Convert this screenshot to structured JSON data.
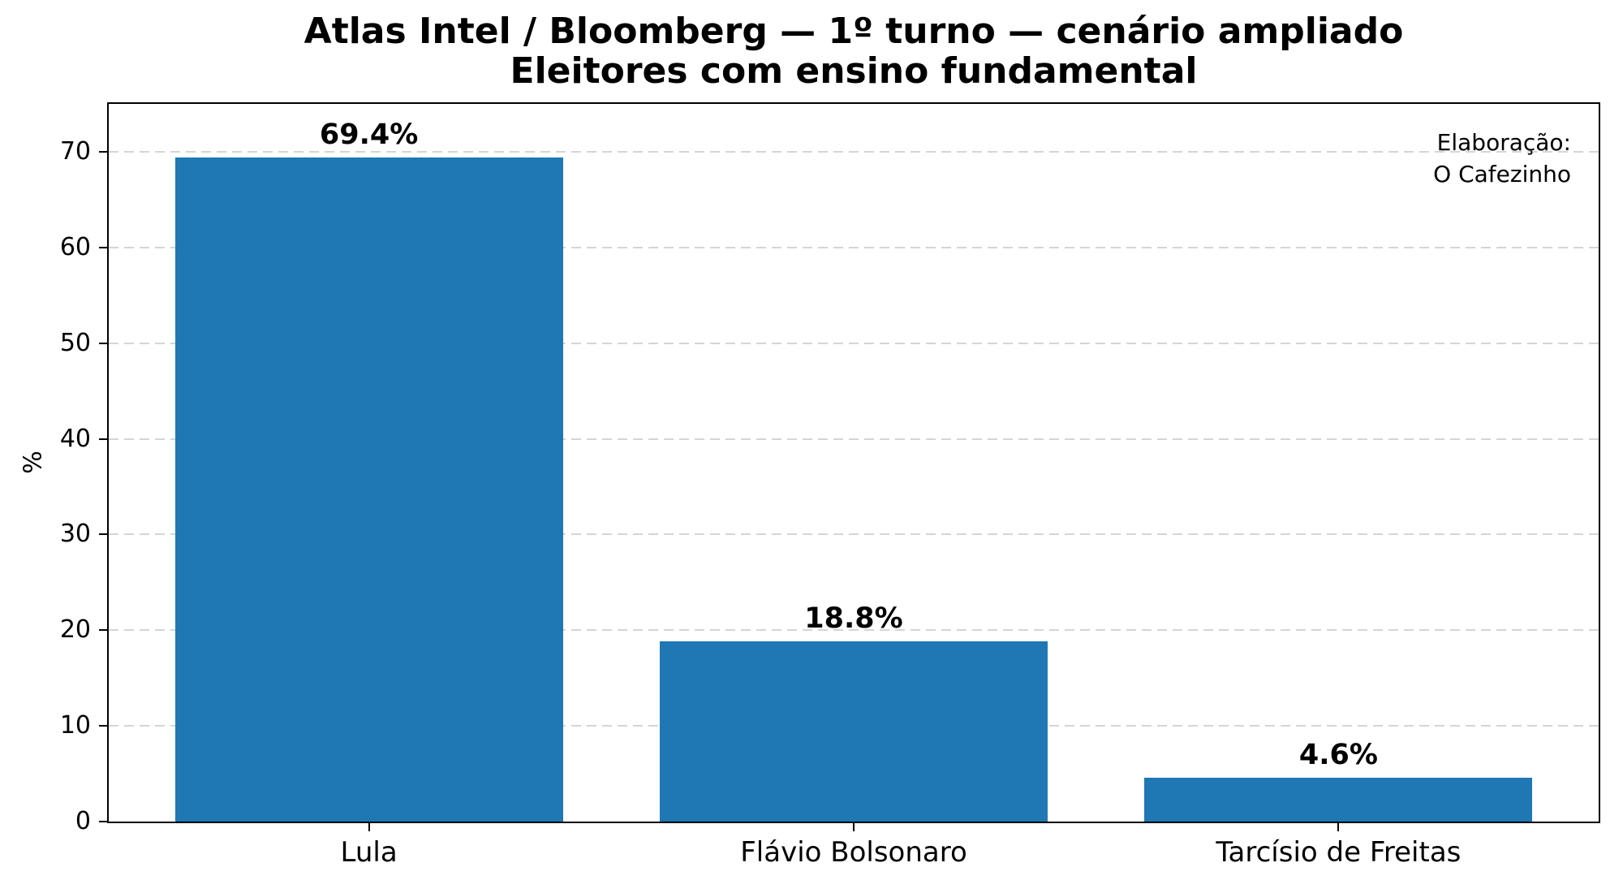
{
  "figure": {
    "title_line1": "Atlas Intel / Bloomberg — 1º turno — cenário ampliado",
    "title_line2": "Eleitores com ensino fundamental",
    "annotation_line1": "Elaboração:",
    "annotation_line2": "O Cafezinho"
  },
  "chart_data": {
    "type": "bar",
    "title": "Atlas Intel / Bloomberg — 1º turno — cenário ampliado\nEleitores com ensino fundamental",
    "categories": [
      "Lula",
      "Flávio Bolsonaro",
      "Tarcísio de Freitas"
    ],
    "values": [
      69.4,
      18.8,
      4.6
    ],
    "bar_value_labels": [
      "69.4%",
      "18.8%",
      "4.6%"
    ],
    "xlabel": "",
    "ylabel": "%",
    "ylim": [
      0,
      75
    ],
    "yticks": [
      0,
      10,
      20,
      30,
      40,
      50,
      60,
      70
    ],
    "grid": {
      "axis": "y",
      "style": "dashed",
      "color": "#d5d5d5"
    },
    "legend": null,
    "bar_color": "#1f77b4",
    "frame_color": "#000000",
    "annotation": "Elaboração:\nO Cafezinho",
    "bar_width_fraction": 0.8
  }
}
